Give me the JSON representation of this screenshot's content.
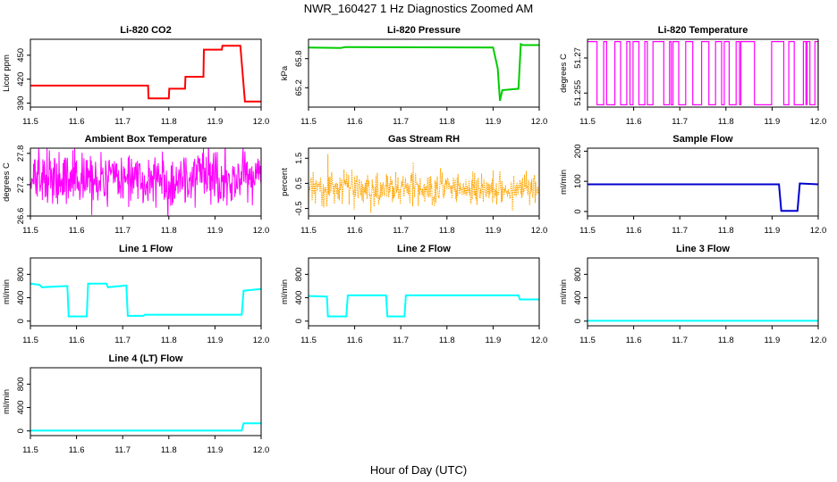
{
  "figure": {
    "title": "NWR_160427  1 Hz Diagnostics Zoomed AM",
    "xlabel": "Hour of Day (UTC)"
  },
  "chart_data": [
    {
      "id": "co2",
      "type": "line",
      "title": "Li-820 CO2",
      "ylabel": "Licor ppm",
      "color": "#ff0000",
      "xlim": [
        11.5,
        12.0
      ],
      "ylim": [
        385,
        470
      ],
      "xticks": [
        11.5,
        11.6,
        11.7,
        11.8,
        11.9,
        12.0
      ],
      "yticks": [
        390,
        420,
        450
      ],
      "series": [
        {
          "x": [
            11.5,
            11.755,
            11.756,
            11.8,
            11.801,
            11.835,
            11.836,
            11.875,
            11.876,
            11.915,
            11.916,
            11.955,
            11.965,
            12.0
          ],
          "y": [
            412,
            412,
            396,
            396,
            408,
            408,
            423,
            423,
            457,
            457,
            462,
            462,
            392,
            392
          ]
        }
      ]
    },
    {
      "id": "pressure",
      "type": "line",
      "title": "Li-820 Pressure",
      "ylabel": "kPa",
      "color": "#00cc00",
      "xlim": [
        11.5,
        12.0
      ],
      "ylim": [
        64.8,
        66.2
      ],
      "xticks": [
        11.5,
        11.6,
        11.7,
        11.8,
        11.9,
        12.0
      ],
      "yticks": [
        65.2,
        65.8
      ],
      "series": [
        {
          "x": [
            11.5,
            11.57,
            11.58,
            11.9,
            11.91,
            11.915,
            11.92,
            11.955,
            11.96,
            11.965,
            12.0
          ],
          "y": [
            66.03,
            66.02,
            66.04,
            66.03,
            65.6,
            64.93,
            65.15,
            65.18,
            66.1,
            66.08,
            66.08
          ]
        }
      ]
    },
    {
      "id": "temperature",
      "type": "line",
      "title": "Li-820 Temperature",
      "ylabel": "degrees C",
      "color": "#ff00ff",
      "xlim": [
        11.5,
        12.0
      ],
      "ylim": [
        51.249,
        51.278
      ],
      "xticks": [
        11.5,
        11.6,
        11.7,
        11.8,
        11.9,
        12.0
      ],
      "yticks": [
        51.255,
        51.27
      ],
      "levels": [
        51.25,
        51.277
      ]
    },
    {
      "id": "ambient",
      "type": "line",
      "title": "Ambient Box Temperature",
      "ylabel": "degrees C",
      "color": "#ff00ff",
      "xlim": [
        11.5,
        12.0
      ],
      "ylim": [
        26.6,
        27.9
      ],
      "xticks": [
        11.5,
        11.6,
        11.7,
        11.8,
        11.9,
        12.0
      ],
      "yticks": [
        26.6,
        27.2,
        27.8
      ],
      "mean": 27.3,
      "spread": 0.35
    },
    {
      "id": "rh",
      "type": "line",
      "title": "Gas Stream RH",
      "ylabel": "percent",
      "color": "#ffa500",
      "xlim": [
        11.5,
        12.0
      ],
      "ylim": [
        -0.8,
        1.9
      ],
      "xticks": [
        11.5,
        11.6,
        11.7,
        11.8,
        11.9,
        12.0
      ],
      "yticks": [
        -0.5,
        0.5,
        1.5
      ],
      "mean": 0.3,
      "spread": 0.45
    },
    {
      "id": "sampleflow",
      "type": "line",
      "title": "Sample Flow",
      "ylabel": "ml/min",
      "color": "#0000cc",
      "xlim": [
        11.5,
        12.0
      ],
      "ylim": [
        -15,
        210
      ],
      "xticks": [
        11.5,
        11.6,
        11.7,
        11.8,
        11.9,
        12.0
      ],
      "yticks": [
        0,
        100,
        200
      ],
      "series": [
        {
          "x": [
            11.5,
            11.915,
            11.92,
            11.955,
            11.96,
            12.0
          ],
          "y": [
            90,
            90,
            2,
            2,
            93,
            90
          ]
        }
      ]
    },
    {
      "id": "line1",
      "type": "line",
      "title": "Line 1 Flow",
      "ylabel": "ml/min",
      "color": "#00ffff",
      "xlim": [
        11.5,
        12.0
      ],
      "ylim": [
        -80,
        1080
      ],
      "xticks": [
        11.5,
        11.6,
        11.7,
        11.8,
        11.9,
        12.0
      ],
      "yticks": [
        0,
        400,
        800
      ],
      "series": [
        {
          "x": [
            11.5,
            11.52,
            11.525,
            11.58,
            11.583,
            11.622,
            11.625,
            11.665,
            11.668,
            11.708,
            11.711,
            11.745,
            11.748,
            11.958,
            11.962,
            12.0
          ],
          "y": [
            640,
            620,
            580,
            600,
            80,
            80,
            640,
            640,
            580,
            610,
            90,
            90,
            110,
            110,
            520,
            550
          ]
        }
      ]
    },
    {
      "id": "line2",
      "type": "line",
      "title": "Line 2 Flow",
      "ylabel": "ml/min",
      "color": "#00ffff",
      "xlim": [
        11.5,
        12.0
      ],
      "ylim": [
        -80,
        1080
      ],
      "xticks": [
        11.5,
        11.6,
        11.7,
        11.8,
        11.9,
        12.0
      ],
      "yticks": [
        0,
        400,
        800
      ],
      "series": [
        {
          "x": [
            11.5,
            11.54,
            11.542,
            11.582,
            11.585,
            11.668,
            11.671,
            11.708,
            11.711,
            11.955,
            11.958,
            12.0
          ],
          "y": [
            430,
            420,
            80,
            80,
            440,
            440,
            80,
            80,
            440,
            440,
            370,
            370
          ]
        }
      ]
    },
    {
      "id": "line3",
      "type": "line",
      "title": "Line 3 Flow",
      "ylabel": "ml/min",
      "color": "#00ffff",
      "xlim": [
        11.5,
        12.0
      ],
      "ylim": [
        -80,
        1080
      ],
      "xticks": [
        11.5,
        11.6,
        11.7,
        11.8,
        11.9,
        12.0
      ],
      "yticks": [
        0,
        400,
        800
      ],
      "series": [
        {
          "x": [
            11.5,
            12.0
          ],
          "y": [
            5,
            5
          ]
        }
      ]
    },
    {
      "id": "line4",
      "type": "line",
      "title": "Line 4 (LT) Flow",
      "ylabel": "ml/min",
      "color": "#00ffff",
      "xlim": [
        11.5,
        12.0
      ],
      "ylim": [
        -80,
        1080
      ],
      "xticks": [
        11.5,
        11.6,
        11.7,
        11.8,
        11.9,
        12.0
      ],
      "yticks": [
        0,
        400,
        800
      ],
      "series": [
        {
          "x": [
            11.5,
            11.958,
            11.962,
            12.0
          ],
          "y": [
            5,
            5,
            130,
            130
          ]
        }
      ]
    }
  ]
}
